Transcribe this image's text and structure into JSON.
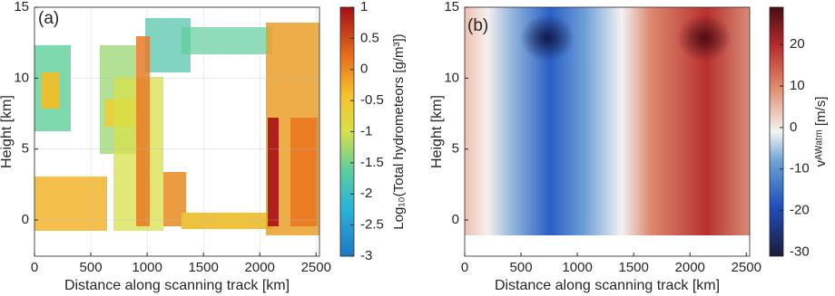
{
  "chart_data": [
    {
      "type": "heatmap",
      "panel_label": "(a)",
      "xlabel": "Distance along scanning track [km]",
      "ylabel": "Height [km]",
      "xlim": [
        0,
        2530
      ],
      "xticks": [
        0,
        500,
        1000,
        1500,
        2000,
        2500
      ],
      "ylim": [
        -2.55,
        15
      ],
      "yticks": [
        0,
        5,
        10,
        15
      ],
      "grid": true,
      "colorbar_label": "Log₁₀(Total hydrometeors [g/m³])",
      "clim": [
        -3,
        1
      ],
      "cticks": [
        -3,
        -2.5,
        -2,
        -1.5,
        -1,
        -0.5,
        0,
        0.5,
        1
      ]
    },
    {
      "type": "heatmap",
      "panel_label": "(b)",
      "xlabel": "Distance along scanning track [km]",
      "ylabel": "Height [km]",
      "xlim": [
        0,
        2530
      ],
      "xticks": [
        0,
        500,
        1000,
        1500,
        2000,
        2500
      ],
      "ylim": [
        -2.55,
        15
      ],
      "yticks": [
        0,
        5,
        10,
        15
      ],
      "grid": false,
      "colorbar_label": "vᴬᵂᵃᵗᵐ [m/s]",
      "clim": [
        -31,
        29
      ],
      "cticks": [
        -30,
        -20,
        -10,
        0,
        10,
        20
      ]
    }
  ]
}
